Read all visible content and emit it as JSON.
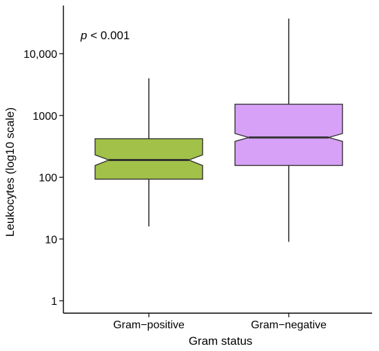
{
  "chart_data": {
    "type": "boxplot",
    "notched": true,
    "title": "",
    "xlabel": "Gram status",
    "ylabel": "Leukocytes (log10 scale)",
    "yscale": "log10",
    "ylim": [
      0.6,
      50000
    ],
    "yticks": [
      1,
      10,
      100,
      1000,
      10000
    ],
    "ytick_labels": [
      "1",
      "10",
      "100",
      "1000",
      "10,000"
    ],
    "grid": false,
    "annotation": {
      "p_symbol": "p",
      "rest": " < 0.001"
    },
    "categories": [
      "Gram−positive",
      "Gram−negative"
    ],
    "boxes": [
      {
        "name": "Gram−positive",
        "color": "#a2c149",
        "whisker_low": 16,
        "q1": 93,
        "notch_low": 155,
        "median": 190,
        "notch_high": 230,
        "q3": 420,
        "whisker_high": 4000
      },
      {
        "name": "Gram−negative",
        "color": "#d7a1f7",
        "whisker_low": 9,
        "q1": 155,
        "notch_low": 380,
        "median": 440,
        "notch_high": 510,
        "q3": 1520,
        "whisker_high": 37000
      }
    ]
  }
}
